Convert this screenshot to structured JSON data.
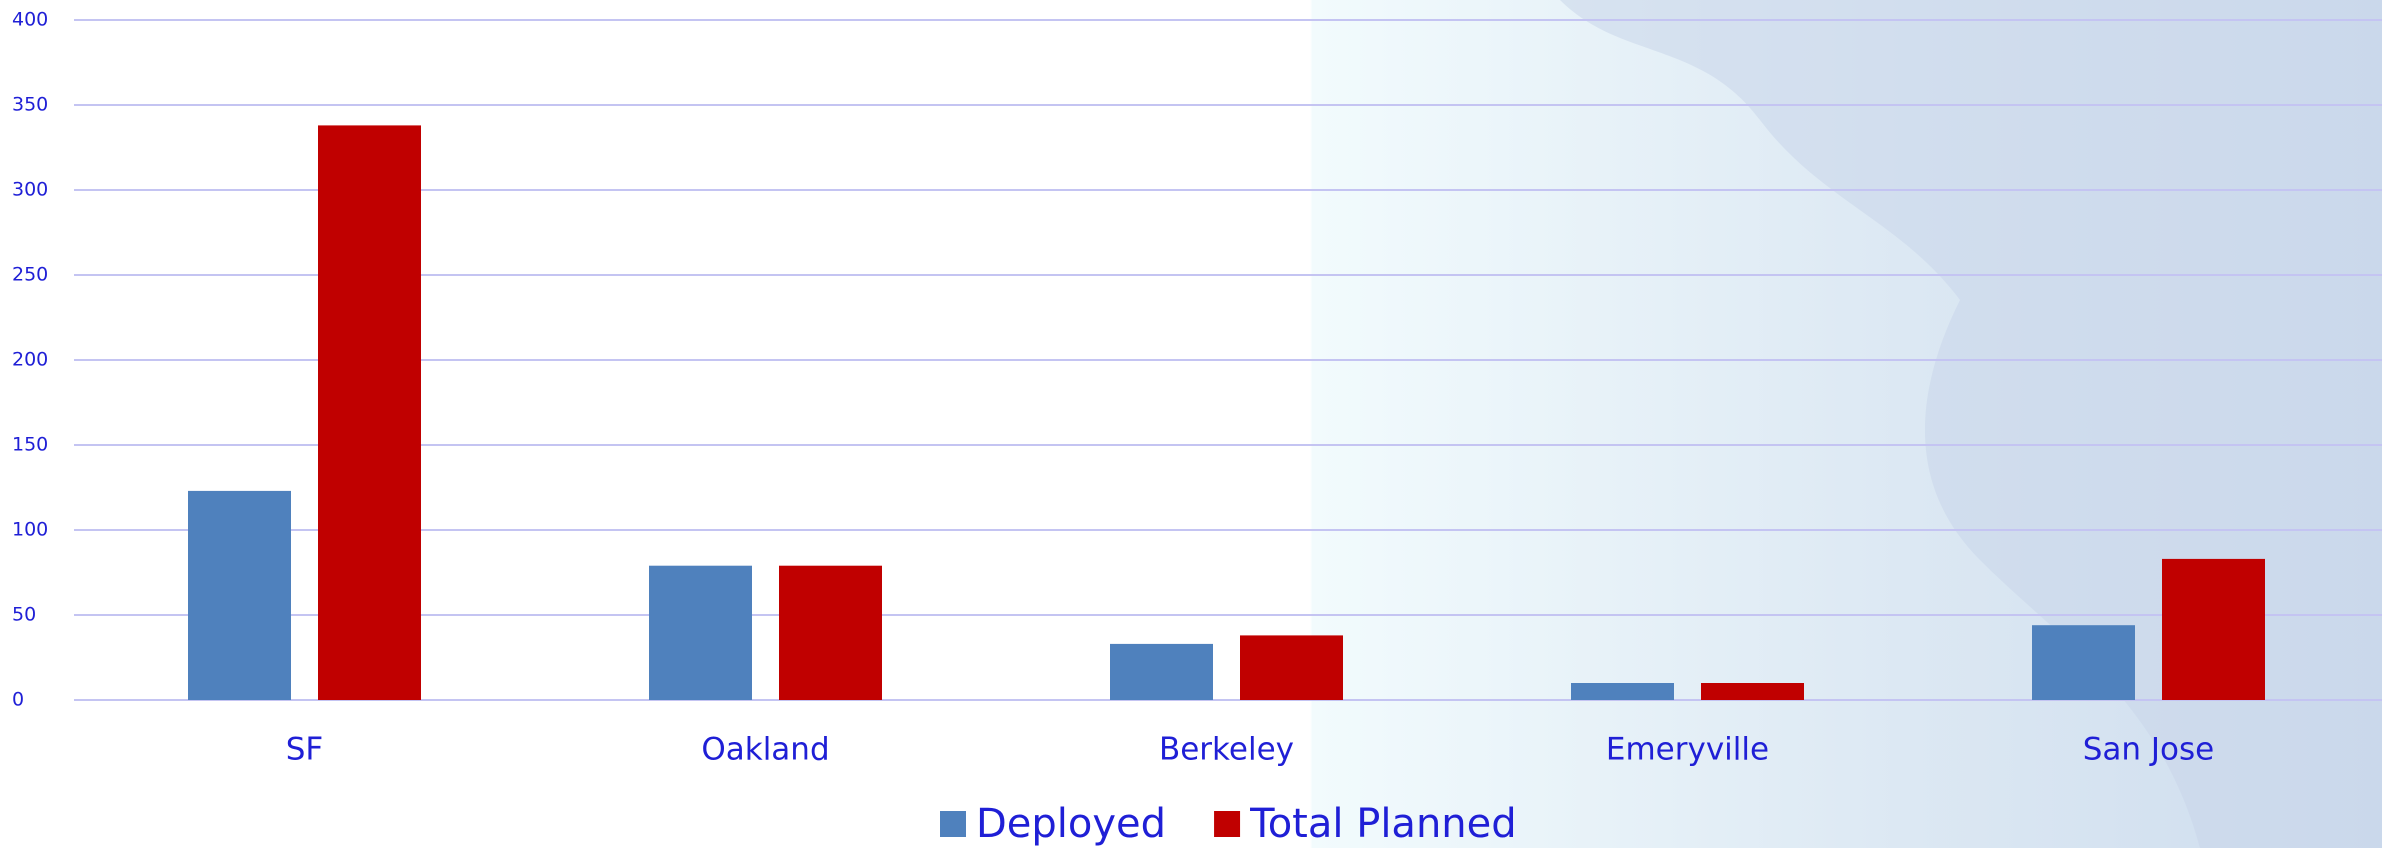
{
  "chart_data": {
    "type": "bar",
    "categories": [
      "SF",
      "Oakland",
      "Berkeley",
      "Emeryville",
      "San Jose"
    ],
    "series": [
      {
        "name": "Deployed",
        "color": "#4f81bd",
        "values": [
          123,
          79,
          33,
          10,
          44
        ]
      },
      {
        "name": "Total Planned",
        "color": "#c00000",
        "values": [
          338,
          79,
          38,
          10,
          83
        ]
      }
    ],
    "ylim": [
      0,
      400
    ],
    "yticks": [
      0,
      50,
      100,
      150,
      200,
      250,
      300,
      350,
      400
    ],
    "grid": true
  }
}
